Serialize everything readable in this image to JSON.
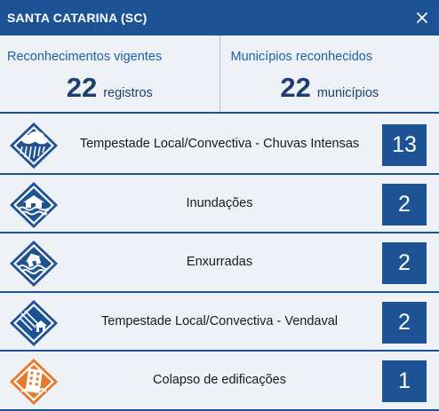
{
  "header": {
    "title": "SANTA CATARINA (SC)"
  },
  "stats": {
    "reconhecimentos": {
      "label": "Reconhecimentos vigentes",
      "value": "22",
      "unit": "registros"
    },
    "municipios": {
      "label": "Municípios reconhecidos",
      "value": "22",
      "unit": "municípios"
    }
  },
  "disasters": [
    {
      "name": "Tempestade Local/Convectiva - Chuvas Intensas",
      "count": "13",
      "icon": "storm-rain-icon"
    },
    {
      "name": "Inundações",
      "count": "2",
      "icon": "flood-icon"
    },
    {
      "name": "Enxurradas",
      "count": "2",
      "icon": "flash-flood-icon"
    },
    {
      "name": "Tempestade Local/Convectiva - Vendaval",
      "count": "2",
      "icon": "windstorm-icon"
    },
    {
      "name": "Colapso de edificações",
      "count": "1",
      "icon": "building-collapse-icon"
    }
  ],
  "colors": {
    "header": "#1d5394",
    "accent": "#1f5ea8",
    "collapse": "#e8782a"
  }
}
